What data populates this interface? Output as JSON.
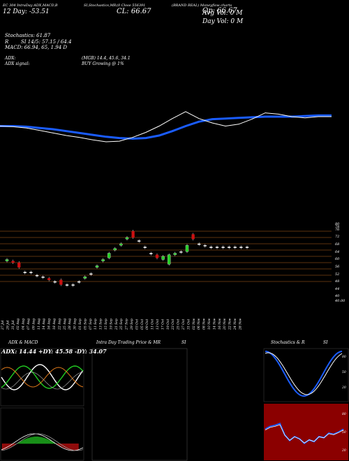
{
  "header": {
    "line1": "EC 304 IntraDay ADX,MACD,B",
    "line1b": "SI,Stochastics,MR",
    "line1c": "(0 Close 556391",
    "line1d": "(BRAND REAL) Moneyflow charts",
    "open_label": "Op: 66.67",
    "close_label": "CL: 66.67",
    "range_label": "12 Day: -53.51",
    "avg_vol": "Avg Vol: 0   M",
    "day_vol": "Day Vol: 0   M",
    "stochastics": "Stochastics: 61.87",
    "si": "SI 14/5: 57.15 / 64.4",
    "r_label": "R",
    "macd": "MACD: 66.94, 65, 1.94   D",
    "adx": "ADX:",
    "adx_vals": "(MGB) 14.4, 45.6, 34.1",
    "adx_signal": "ADX   signal:",
    "buy": "BUY Growing @ 1%"
  },
  "price_axis": [
    "80",
    "78",
    "76",
    "72",
    "68",
    "64",
    "60",
    "56",
    "52",
    "48",
    "44",
    "40",
    "40.00"
  ],
  "date_labels": [
    "27 Jul",
    "29 Jul",
    "31 Jul",
    "02 Aug",
    "04 Aug",
    "07 Aug",
    "09 Aug",
    "11 Aug",
    "14 Aug",
    "16 Aug",
    "18 Aug",
    "22 Aug",
    "25 Aug",
    "28 Aug",
    "30 Aug",
    "01 Sep",
    "05 Sep",
    "07 Sep",
    "11 Sep",
    "13 Sep",
    "15 Sep",
    "19 Sep",
    "21 Sep",
    "25 Sep",
    "27 Sep",
    "29 Sep",
    "03 Oct",
    "05 Oct",
    "09 Oct",
    "11 Oct",
    "13 Oct",
    "17 Oct",
    "19 Oct",
    "23 Oct",
    "25 Oct",
    "27 Oct",
    "31 Oct",
    "02 Nov",
    "06 Nov",
    "08 Nov",
    "10 Nov",
    "14 Nov",
    "16 Nov",
    "20 Nov",
    "22 Nov",
    "24 Nov",
    "28 Nov"
  ],
  "panels": {
    "adx_title": "ADX  & MACD",
    "adx_vals": "ADX: 14.44  +DY: 45.58  -DY: 34.07",
    "intraday_title": "Intra  Day Trading Price  & MR",
    "si_title": "SI",
    "stoch_title": "Stochastics & R",
    "stoch_si": "SI",
    "stoch_ticks": [
      "80",
      "50",
      "20"
    ],
    "si_ticks": [
      "80",
      "50",
      "20"
    ]
  },
  "colors": {
    "bg": "#000000",
    "blue": "#1a5cff",
    "white": "#ffffff",
    "orange": "#e07a1a",
    "green": "#22cc22",
    "red": "#cc1111",
    "darkred": "#8b0000"
  },
  "chart_data": {
    "type": "line",
    "ma_blue": [
      0.55,
      0.55,
      0.54,
      0.52,
      0.5,
      0.47,
      0.44,
      0.41,
      0.38,
      0.36,
      0.35,
      0.36,
      0.4,
      0.47,
      0.55,
      0.62,
      0.66,
      0.67,
      0.68,
      0.69,
      0.7,
      0.7,
      0.7,
      0.71,
      0.72,
      0.72
    ],
    "price_white": [
      0.55,
      0.54,
      0.52,
      0.48,
      0.44,
      0.4,
      0.37,
      0.33,
      0.3,
      0.31,
      0.37,
      0.45,
      0.55,
      0.67,
      0.78,
      0.67,
      0.6,
      0.55,
      0.58,
      0.66,
      0.76,
      0.74,
      0.7,
      0.68,
      0.7,
      0.7
    ],
    "candles": [
      {
        "o": 57,
        "c": 58,
        "up": true
      },
      {
        "o": 57,
        "c": 56,
        "up": false
      },
      {
        "o": 56,
        "c": 53,
        "up": false
      },
      {
        "o": 50,
        "c": 50,
        "up": true
      },
      {
        "o": 50,
        "c": 50,
        "up": true
      },
      {
        "o": 48,
        "c": 48,
        "up": true
      },
      {
        "o": 47,
        "c": 47,
        "up": true
      },
      {
        "o": 46,
        "c": 45,
        "up": false
      },
      {
        "o": 44,
        "c": 44,
        "up": true
      },
      {
        "o": 45,
        "c": 42,
        "up": false
      },
      {
        "o": 42,
        "c": 42,
        "up": true
      },
      {
        "o": 42,
        "c": 42,
        "up": true
      },
      {
        "o": 44,
        "c": 44,
        "up": true
      },
      {
        "o": 46,
        "c": 47,
        "up": true
      },
      {
        "o": 49,
        "c": 49,
        "up": true
      },
      {
        "o": 53,
        "c": 54,
        "up": true
      },
      {
        "o": 57,
        "c": 58,
        "up": true
      },
      {
        "o": 59,
        "c": 62,
        "up": true
      },
      {
        "o": 64,
        "c": 65,
        "up": true
      },
      {
        "o": 67,
        "c": 68,
        "up": true
      },
      {
        "o": 71,
        "c": 72,
        "up": true
      },
      {
        "o": 72,
        "c": 76,
        "up": false
      },
      {
        "o": 70,
        "c": 70,
        "up": true
      },
      {
        "o": 66,
        "c": 66,
        "up": true
      },
      {
        "o": 62,
        "c": 62,
        "up": true
      },
      {
        "o": 61,
        "c": 59,
        "up": false
      },
      {
        "o": 60,
        "c": 58,
        "up": true
      },
      {
        "o": 55,
        "c": 61,
        "up": true
      },
      {
        "o": 61,
        "c": 62,
        "up": true
      },
      {
        "o": 63,
        "c": 63,
        "up": true
      },
      {
        "o": 63,
        "c": 67,
        "up": true
      },
      {
        "o": 71,
        "c": 74,
        "up": false
      },
      {
        "o": 68,
        "c": 68,
        "up": true
      },
      {
        "o": 67,
        "c": 67,
        "up": true
      },
      {
        "o": 66,
        "c": 66,
        "up": true
      },
      {
        "o": 66,
        "c": 66,
        "up": true
      },
      {
        "o": 66,
        "c": 66,
        "up": true
      },
      {
        "o": 66,
        "c": 66,
        "up": true
      },
      {
        "o": 66,
        "c": 66,
        "up": true
      },
      {
        "o": 66,
        "c": 66,
        "up": true
      },
      {
        "o": 66,
        "c": 66,
        "up": true
      }
    ],
    "ylim": [
      40,
      80
    ]
  }
}
